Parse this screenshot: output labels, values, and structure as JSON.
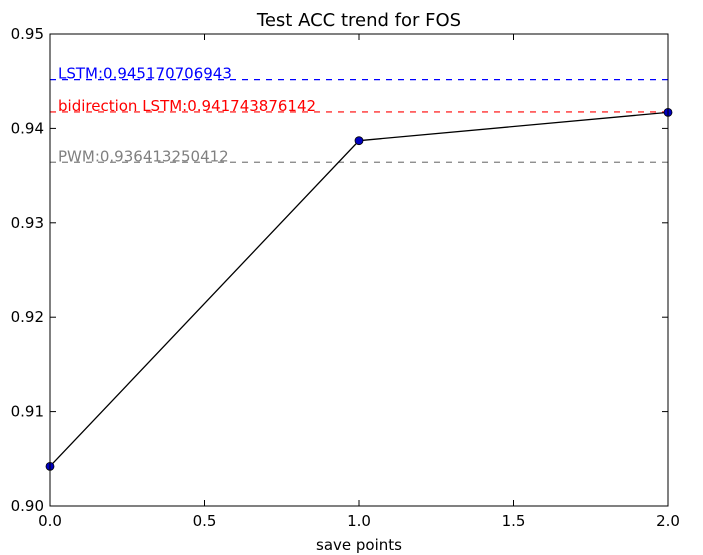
{
  "chart_data": {
    "type": "line",
    "title": "Test ACC trend for FOS",
    "xlabel": "save points",
    "ylabel": "",
    "xlim": [
      0.0,
      2.0
    ],
    "ylim": [
      0.9,
      0.95
    ],
    "x_ticks": [
      0.0,
      0.5,
      1.0,
      1.5,
      2.0
    ],
    "x_tick_labels": [
      "0.0",
      "0.5",
      "1.0",
      "1.5",
      "2.0"
    ],
    "y_ticks": [
      0.9,
      0.91,
      0.92,
      0.93,
      0.94,
      0.95
    ],
    "y_tick_labels": [
      "0.90",
      "0.91",
      "0.92",
      "0.93",
      "0.94",
      "0.95"
    ],
    "grid": false,
    "series": [
      {
        "x": [
          0,
          1,
          2
        ],
        "values": [
          0.9042,
          0.9387,
          0.9417
        ],
        "color": "#000000",
        "marker_color": "#0000bf"
      }
    ],
    "reference_lines": [
      {
        "label": "LSTM:0.945170706943",
        "value": 0.945170706943,
        "color": "#0000ff"
      },
      {
        "label": "bidirection LSTM:0.941743876142",
        "value": 0.941743876142,
        "color": "#ff0000"
      },
      {
        "label": "PWM:0.936413250412",
        "value": 0.936413250412,
        "color": "#808080"
      }
    ]
  }
}
